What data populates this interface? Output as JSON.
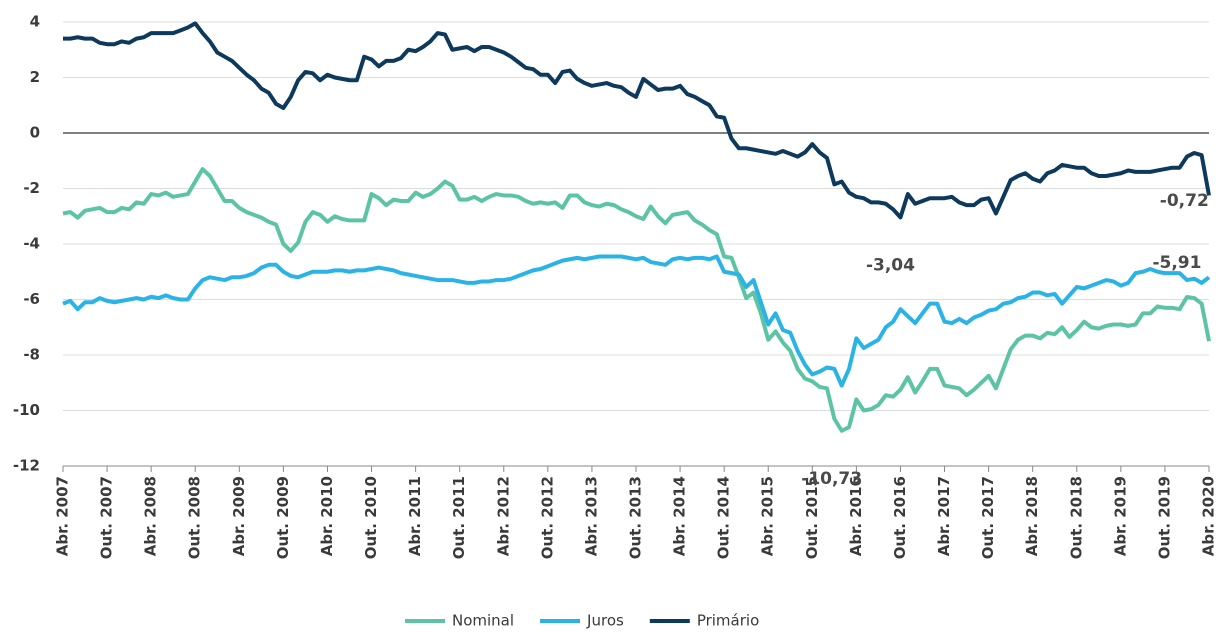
{
  "chart_data": {
    "type": "line",
    "categories": [
      "Abr. 2007",
      null,
      null,
      null,
      null,
      null,
      "Out. 2007",
      null,
      null,
      null,
      null,
      null,
      "Abr. 2008",
      null,
      null,
      null,
      null,
      null,
      "Out. 2008",
      null,
      null,
      null,
      null,
      null,
      "Abr. 2009",
      null,
      null,
      null,
      null,
      null,
      "Out. 2009",
      null,
      null,
      null,
      null,
      null,
      "Abr. 2010",
      null,
      null,
      null,
      null,
      null,
      "Out. 2010",
      null,
      null,
      null,
      null,
      null,
      "Abr. 2011",
      null,
      null,
      null,
      null,
      null,
      "Out. 2011",
      null,
      null,
      null,
      null,
      null,
      "Abr. 2012",
      null,
      null,
      null,
      null,
      null,
      "Out. 2012",
      null,
      null,
      null,
      null,
      null,
      "Abr. 2013",
      null,
      null,
      null,
      null,
      null,
      "Out. 2013",
      null,
      null,
      null,
      null,
      null,
      "Abr. 2014",
      null,
      null,
      null,
      null,
      null,
      "Out. 2014",
      null,
      null,
      null,
      null,
      null,
      "Abr. 2015",
      null,
      null,
      null,
      null,
      null,
      "Out. 2015",
      null,
      null,
      null,
      null,
      null,
      "Abr. 2016",
      null,
      null,
      null,
      null,
      null,
      "Out. 2016",
      null,
      null,
      null,
      null,
      null,
      "Abr. 2017",
      null,
      null,
      null,
      null,
      null,
      "Out. 2017",
      null,
      null,
      null,
      null,
      null,
      "Abr. 2018",
      null,
      null,
      null,
      null,
      null,
      "Out. 2018",
      null,
      null,
      null,
      null,
      null,
      "Abr. 2019",
      null,
      null,
      null,
      null,
      null,
      "Out. 2019",
      null,
      null,
      null,
      null,
      null,
      "Abr. 2020"
    ],
    "series": [
      {
        "name": "Nominal",
        "color": "#5cc4a4",
        "values": [
          -2.9,
          -2.85,
          -3.05,
          -2.8,
          -2.75,
          -2.7,
          -2.85,
          -2.85,
          -2.7,
          -2.75,
          -2.5,
          -2.55,
          -2.2,
          -2.25,
          -2.15,
          -2.3,
          -2.25,
          -2.2,
          -1.75,
          -1.3,
          -1.55,
          -2.0,
          -2.45,
          -2.45,
          -2.7,
          -2.85,
          -2.95,
          -3.05,
          -3.2,
          -3.3,
          -4.0,
          -4.25,
          -3.95,
          -3.2,
          -2.85,
          -2.95,
          -3.2,
          -3.0,
          -3.1,
          -3.15,
          -3.15,
          -3.15,
          -2.2,
          -2.35,
          -2.6,
          -2.4,
          -2.45,
          -2.45,
          -2.15,
          -2.3,
          -2.2,
          -2.0,
          -1.75,
          -1.9,
          -2.4,
          -2.4,
          -2.3,
          -2.45,
          -2.3,
          -2.2,
          -2.25,
          -2.25,
          -2.3,
          -2.45,
          -2.55,
          -2.5,
          -2.55,
          -2.5,
          -2.7,
          -2.25,
          -2.25,
          -2.5,
          -2.6,
          -2.65,
          -2.55,
          -2.6,
          -2.75,
          -2.85,
          -3.0,
          -3.1,
          -2.65,
          -3.0,
          -3.25,
          -2.95,
          -2.9,
          -2.85,
          -3.15,
          -3.3,
          -3.5,
          -3.65,
          -4.45,
          -4.5,
          -5.2,
          -5.95,
          -5.75,
          -6.5,
          -7.45,
          -7.15,
          -7.55,
          -7.85,
          -8.5,
          -8.85,
          -8.95,
          -9.15,
          -9.2,
          -10.3,
          -10.73,
          -10.6,
          -9.6,
          -10.0,
          -9.95,
          -9.8,
          -9.45,
          -9.5,
          -9.25,
          -8.8,
          -9.35,
          -8.95,
          -8.5,
          -8.5,
          -9.1,
          -9.15,
          -9.2,
          -9.45,
          -9.25,
          -9.0,
          -8.75,
          -9.2,
          -8.5,
          -7.8,
          -7.45,
          -7.3,
          -7.3,
          -7.4,
          -7.2,
          -7.25,
          -7.0,
          -7.35,
          -7.1,
          -6.8,
          -7.0,
          -7.05,
          -6.95,
          -6.9,
          -6.9,
          -6.95,
          -6.9,
          -6.5,
          -6.5,
          -6.25,
          -6.3,
          -6.3,
          -6.35,
          -5.91,
          -5.95,
          -6.15,
          -7.5
        ]
      },
      {
        "name": "Juros",
        "color": "#2bb3e6",
        "values": [
          -6.15,
          -6.05,
          -6.35,
          -6.1,
          -6.1,
          -5.95,
          -6.05,
          -6.1,
          -6.05,
          -6.0,
          -5.95,
          -6.0,
          -5.9,
          -5.95,
          -5.85,
          -5.95,
          -6.0,
          -6.0,
          -5.6,
          -5.3,
          -5.2,
          -5.25,
          -5.3,
          -5.2,
          -5.2,
          -5.15,
          -5.05,
          -4.85,
          -4.75,
          -4.75,
          -5.0,
          -5.15,
          -5.2,
          -5.1,
          -5.0,
          -5.0,
          -5.0,
          -4.95,
          -4.95,
          -5.0,
          -4.95,
          -4.95,
          -4.9,
          -4.85,
          -4.9,
          -4.95,
          -5.05,
          -5.1,
          -5.15,
          -5.2,
          -5.25,
          -5.3,
          -5.3,
          -5.3,
          -5.35,
          -5.4,
          -5.4,
          -5.35,
          -5.35,
          -5.3,
          -5.3,
          -5.25,
          -5.15,
          -5.05,
          -4.95,
          -4.9,
          -4.8,
          -4.7,
          -4.6,
          -4.55,
          -4.5,
          -4.55,
          -4.5,
          -4.45,
          -4.45,
          -4.45,
          -4.45,
          -4.5,
          -4.55,
          -4.5,
          -4.65,
          -4.7,
          -4.75,
          -4.55,
          -4.5,
          -4.55,
          -4.5,
          -4.5,
          -4.55,
          -4.45,
          -5.0,
          -5.05,
          -5.1,
          -5.55,
          -5.3,
          -6.1,
          -6.9,
          -6.5,
          -7.1,
          -7.2,
          -7.85,
          -8.35,
          -8.7,
          -8.6,
          -8.45,
          -8.5,
          -9.1,
          -8.5,
          -7.4,
          -7.75,
          -7.6,
          -7.45,
          -7.0,
          -6.8,
          -6.35,
          -6.6,
          -6.85,
          -6.5,
          -6.15,
          -6.15,
          -6.8,
          -6.85,
          -6.7,
          -6.85,
          -6.65,
          -6.55,
          -6.4,
          -6.35,
          -6.15,
          -6.1,
          -5.95,
          -5.9,
          -5.75,
          -5.75,
          -5.85,
          -5.8,
          -6.15,
          -5.85,
          -5.55,
          -5.6,
          -5.5,
          -5.4,
          -5.3,
          -5.35,
          -5.5,
          -5.4,
          -5.05,
          -5.0,
          -4.9,
          -5.0,
          -5.05,
          -5.05,
          -5.05,
          -5.3,
          -5.25,
          -5.4,
          -5.2
        ]
      },
      {
        "name": "Primário",
        "color": "#0d3a5c",
        "values": [
          3.4,
          3.4,
          3.45,
          3.4,
          3.4,
          3.25,
          3.2,
          3.2,
          3.3,
          3.25,
          3.4,
          3.45,
          3.6,
          3.6,
          3.6,
          3.6,
          3.7,
          3.8,
          3.95,
          3.6,
          3.3,
          2.9,
          2.75,
          2.6,
          2.35,
          2.1,
          1.9,
          1.6,
          1.45,
          1.05,
          0.9,
          1.3,
          1.9,
          2.2,
          2.15,
          1.9,
          2.1,
          2.0,
          1.95,
          1.9,
          1.9,
          2.75,
          2.65,
          2.4,
          2.6,
          2.6,
          2.7,
          3.0,
          2.95,
          3.1,
          3.3,
          3.6,
          3.55,
          3.0,
          3.05,
          3.1,
          2.95,
          3.1,
          3.1,
          3.0,
          2.9,
          2.75,
          2.55,
          2.35,
          2.3,
          2.1,
          2.1,
          1.8,
          2.2,
          2.25,
          1.95,
          1.8,
          1.7,
          1.75,
          1.8,
          1.7,
          1.65,
          1.45,
          1.3,
          1.95,
          1.75,
          1.55,
          1.6,
          1.6,
          1.7,
          1.4,
          1.3,
          1.15,
          1.0,
          0.6,
          0.55,
          -0.2,
          -0.55,
          -0.55,
          -0.6,
          -0.65,
          -0.7,
          -0.75,
          -0.65,
          -0.75,
          -0.85,
          -0.7,
          -0.4,
          -0.7,
          -0.9,
          -1.85,
          -1.75,
          -2.15,
          -2.3,
          -2.35,
          -2.5,
          -2.5,
          -2.55,
          -2.75,
          -3.04,
          -2.2,
          -2.55,
          -2.45,
          -2.35,
          -2.35,
          -2.35,
          -2.3,
          -2.5,
          -2.6,
          -2.6,
          -2.4,
          -2.35,
          -2.9,
          -2.3,
          -1.7,
          -1.55,
          -1.45,
          -1.65,
          -1.75,
          -1.45,
          -1.35,
          -1.15,
          -1.2,
          -1.25,
          -1.25,
          -1.45,
          -1.55,
          -1.55,
          -1.5,
          -1.45,
          -1.35,
          -1.4,
          -1.4,
          -1.4,
          -1.35,
          -1.3,
          -1.25,
          -1.25,
          -0.85,
          -0.72,
          -0.8,
          -2.25
        ]
      }
    ],
    "annotations": [
      {
        "text": "-10,73",
        "series": "Nominal",
        "value": -10.73,
        "placement": "below"
      },
      {
        "text": "-3,04",
        "series": "Primário",
        "value": -3.04,
        "placement": "below"
      },
      {
        "text": "-0,72",
        "series": "Primário",
        "value": -0.72,
        "placement": "below"
      },
      {
        "text": "-5,91",
        "series": "Nominal",
        "value": -5.91,
        "placement": "above"
      }
    ],
    "ylim": [
      -12,
      4
    ],
    "yticks": [
      -12,
      -10,
      -8,
      -6,
      -4,
      -2,
      0,
      2,
      4
    ],
    "grid": true,
    "legend": "bottom"
  }
}
